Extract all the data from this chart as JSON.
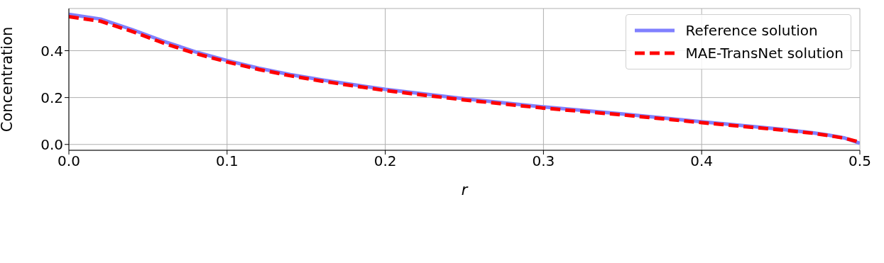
{
  "chart_data": {
    "type": "line",
    "xlabel": "r",
    "ylabel": "Concentration",
    "xlim": [
      0,
      0.5
    ],
    "xticks": [
      {
        "value": 0,
        "label": "0.0"
      },
      0.1,
      0.2,
      0.3,
      0.4,
      0.5
    ],
    "ylim": [
      -0.025,
      0.58
    ],
    "yticks": [
      {
        "value": 0,
        "label": "0.0"
      },
      0.2,
      0.4
    ],
    "grid": true,
    "legend": "top right",
    "marker": "none",
    "x": [
      0,
      0.02,
      0.04,
      0.06,
      0.08,
      0.1,
      0.12,
      0.14,
      0.16,
      0.18,
      0.2,
      0.25,
      0.3,
      0.35,
      0.4,
      0.45,
      0.47,
      0.48,
      0.49,
      0.5
    ],
    "series": [
      {
        "name": "Reference solution",
        "color": "#8080ff",
        "line_style": "solid",
        "values": [
          0.555,
          0.535,
          0.49,
          0.44,
          0.395,
          0.358,
          0.325,
          0.298,
          0.275,
          0.255,
          0.235,
          0.195,
          0.16,
          0.13,
          0.097,
          0.065,
          0.05,
          0.04,
          0.028,
          0.005
        ]
      },
      {
        "name": "MAE-TransNet solution",
        "color": "#ff0000",
        "line_style": "dashed",
        "values": [
          0.545,
          0.526,
          0.482,
          0.432,
          0.388,
          0.352,
          0.32,
          0.293,
          0.27,
          0.25,
          0.23,
          0.19,
          0.155,
          0.126,
          0.093,
          0.062,
          0.048,
          0.038,
          0.027,
          0.01
        ]
      }
    ]
  }
}
